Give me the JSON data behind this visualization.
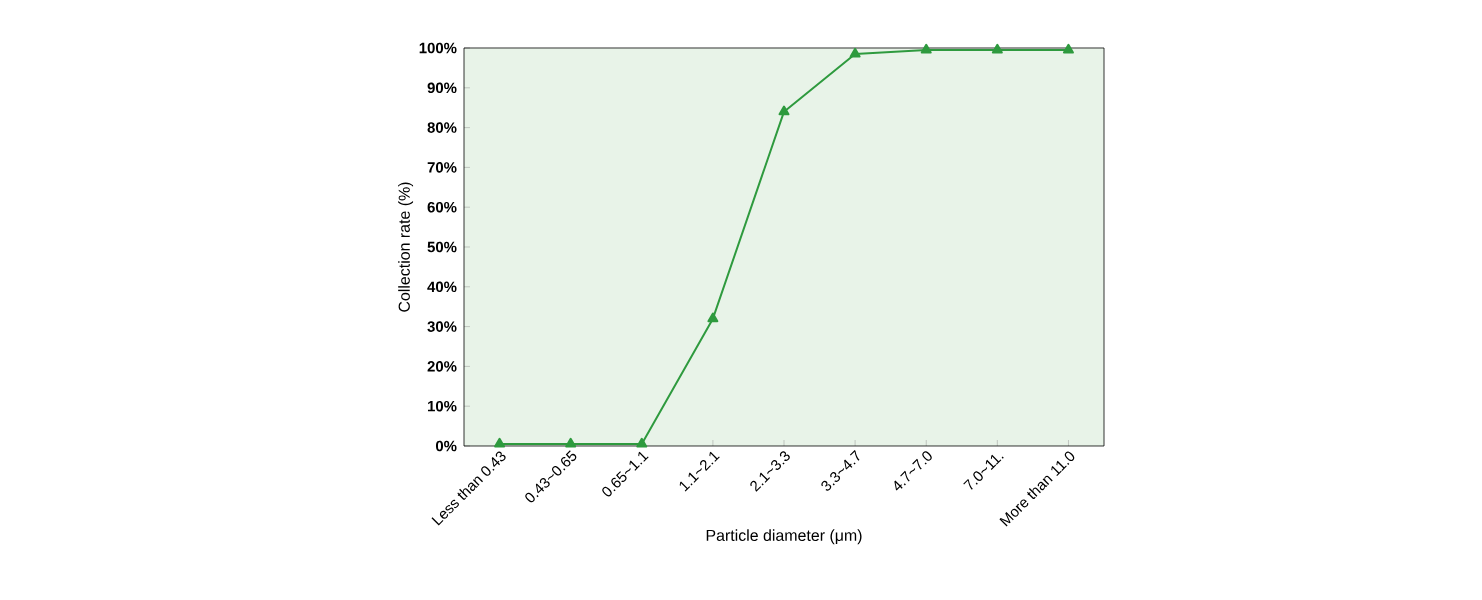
{
  "chart_data": {
    "type": "line",
    "xlabel": "Particle diameter (μm)",
    "ylabel": "Collection rate (%)",
    "categories": [
      "Less than 0.43",
      "0.43~0.65",
      "0.65~1.1",
      "1.1~2.1",
      "2.1~3.3",
      "3.3~4.7",
      "4.7~7.0",
      "7.0~11.",
      "More than 11.0"
    ],
    "series": [
      {
        "color": "#2e9a3e",
        "values": [
          0.5,
          0.5,
          0.5,
          32,
          84,
          98.5,
          99.5,
          99.5,
          99.5
        ]
      }
    ],
    "ylim": [
      0,
      100
    ],
    "yticks": [
      {
        "value": 0,
        "label": "0%"
      },
      {
        "value": 10,
        "label": "10%"
      },
      {
        "value": 20,
        "label": "20%"
      },
      {
        "value": 30,
        "label": "30%"
      },
      {
        "value": 40,
        "label": "40%"
      },
      {
        "value": 50,
        "label": "50%"
      },
      {
        "value": 60,
        "label": "60%"
      },
      {
        "value": 70,
        "label": "70%"
      },
      {
        "value": 80,
        "label": "80%"
      },
      {
        "value": 90,
        "label": "90%"
      },
      {
        "value": 100,
        "label": "100%"
      }
    ],
    "marker": "triangle",
    "line_style": "solid"
  }
}
